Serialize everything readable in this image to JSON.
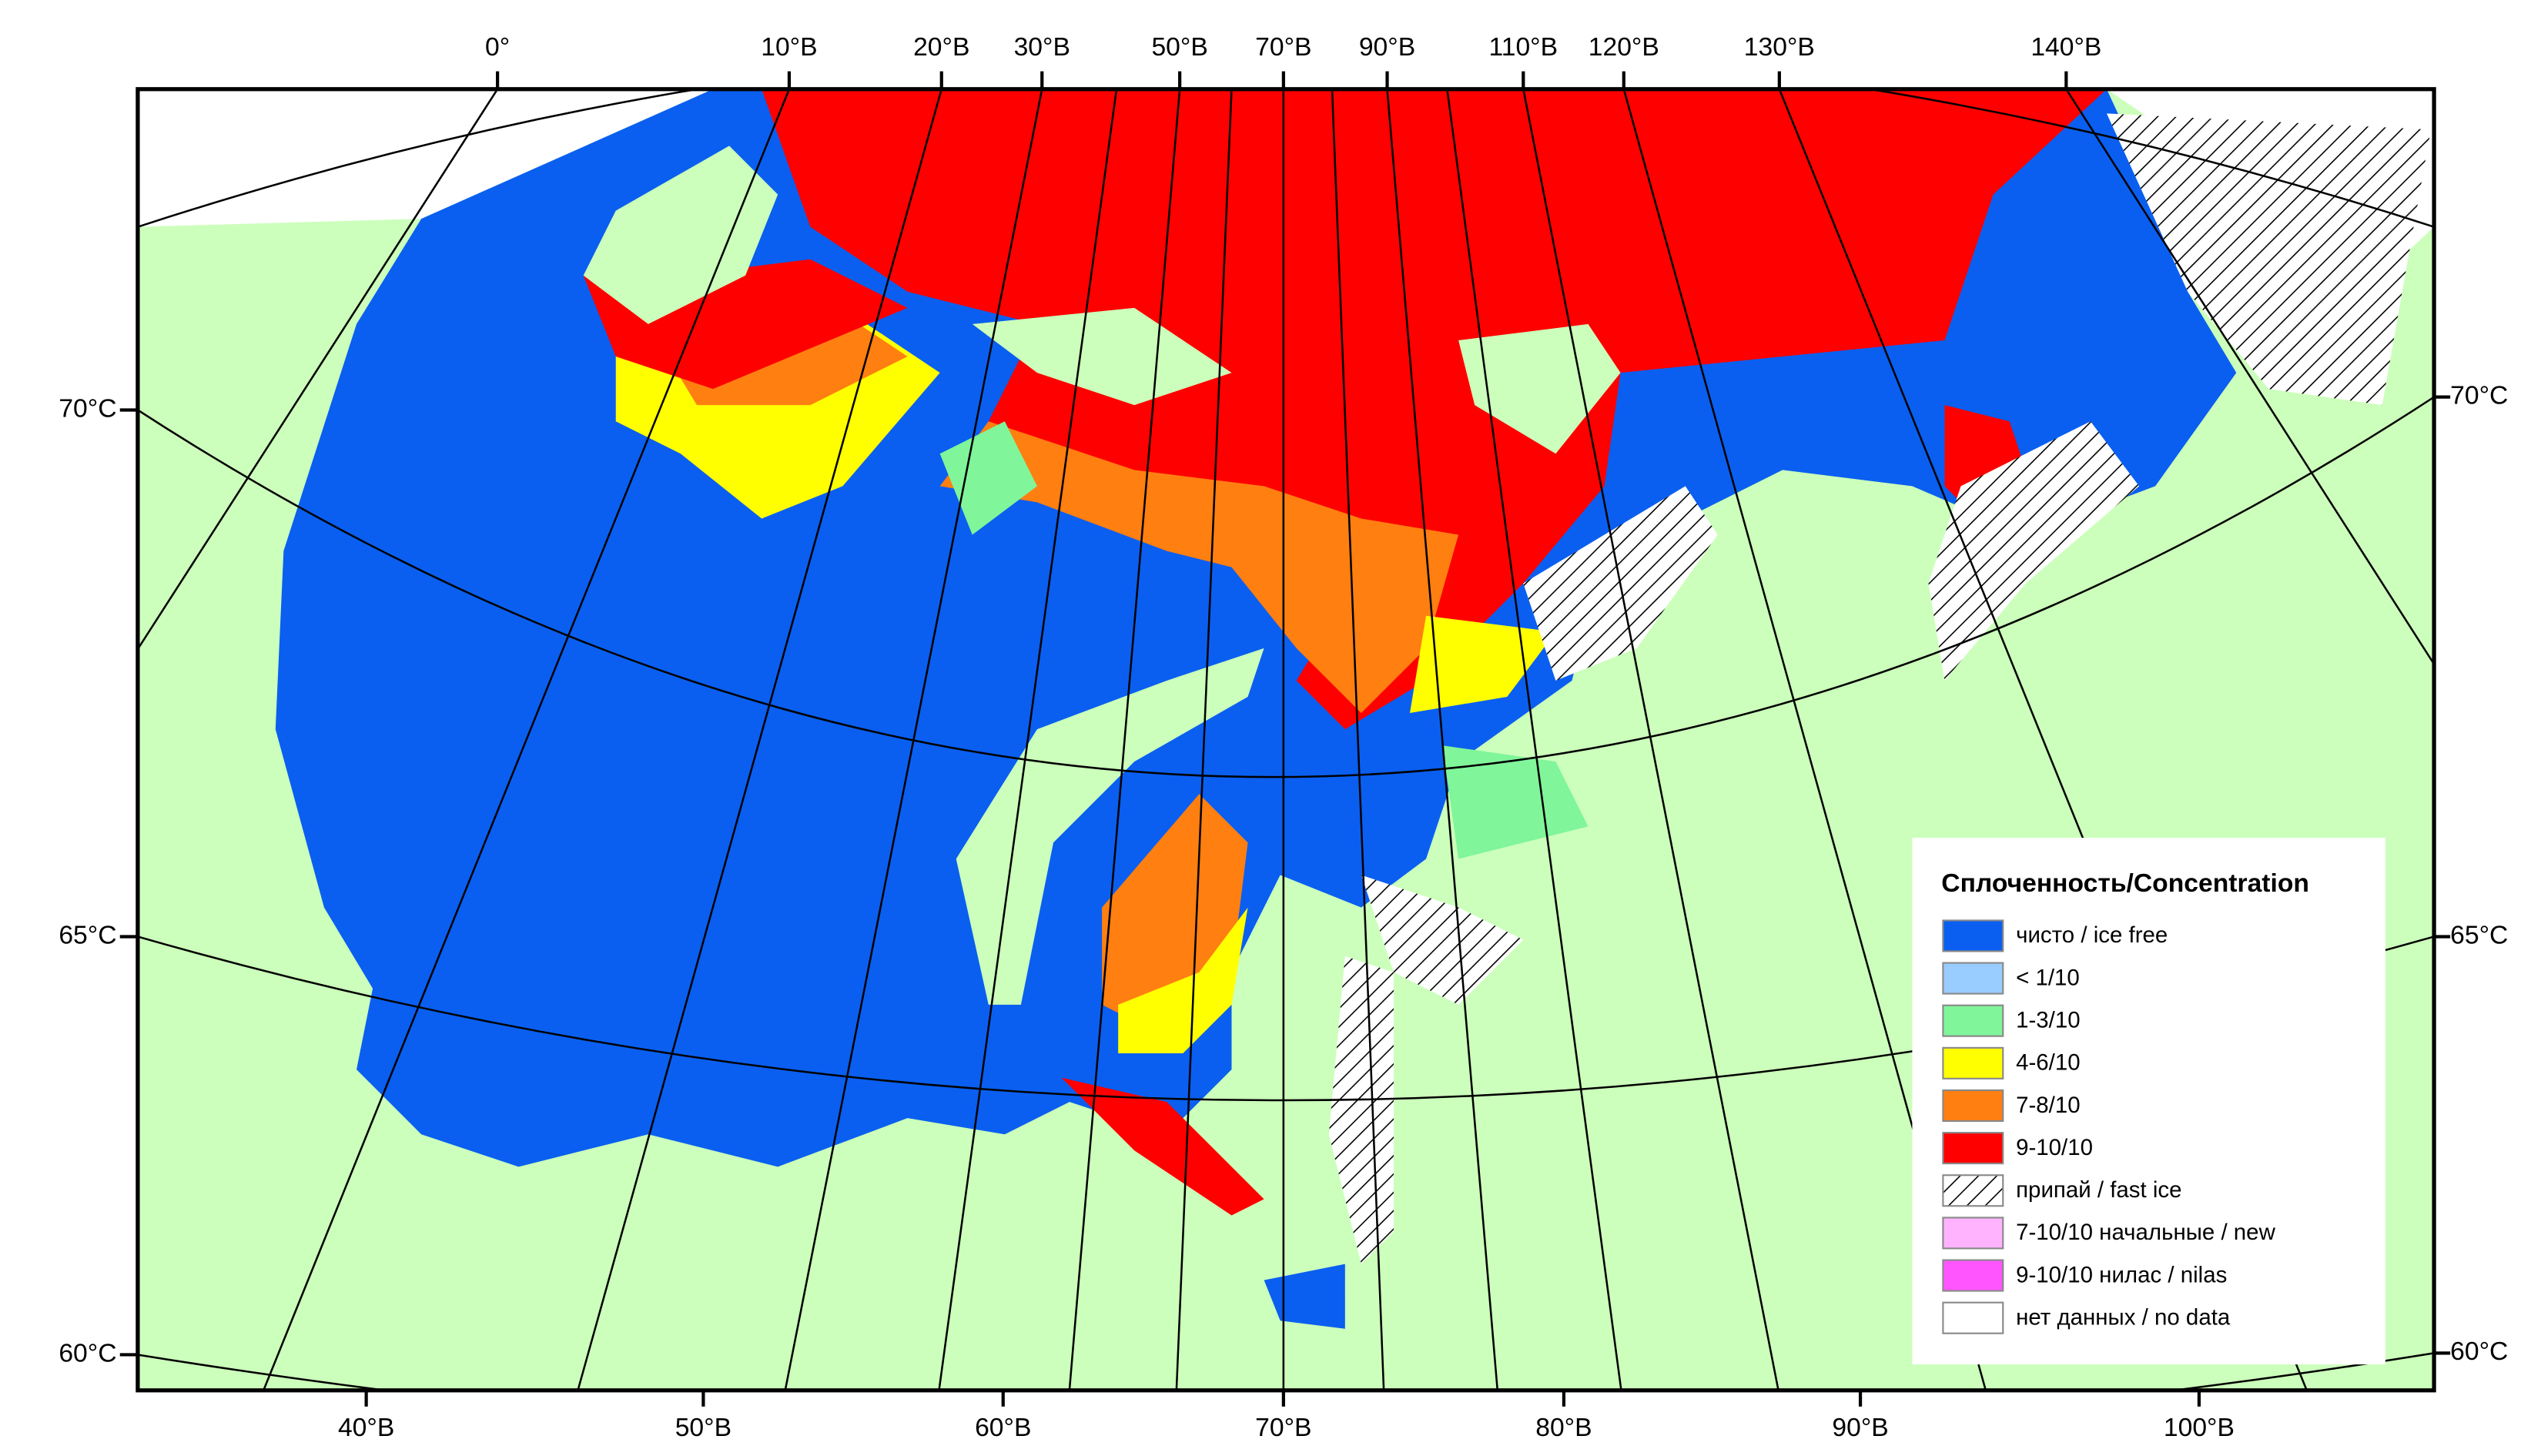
{
  "map": {
    "top_labels": [
      "0°",
      "10°В",
      "20°В",
      "30°В",
      "50°В",
      "70°В",
      "90°В",
      "110°В",
      "120°В",
      "130°В",
      "140°В"
    ],
    "bottom_labels": [
      "40°В",
      "50°В",
      "60°В",
      "70°В",
      "80°В",
      "90°В",
      "100°В"
    ],
    "left_labels": [
      "70°С",
      "65°С",
      "60°С"
    ],
    "right_labels": [
      "70°С",
      "65°С",
      "60°С"
    ]
  },
  "legend": {
    "title": "Сплоченность/Concentration",
    "items": [
      {
        "label": "чисто / ice free",
        "color": "#0a5ff0"
      },
      {
        "label": "< 1/10",
        "color": "#99ccff"
      },
      {
        "label": "1-3/10",
        "color": "#80f59a"
      },
      {
        "label": "4-6/10",
        "color": "#ffff00"
      },
      {
        "label": "7-8/10",
        "color": "#ff7f10"
      },
      {
        "label": "9-10/10",
        "color": "#ff0000"
      },
      {
        "label": "припай / fast ice",
        "pattern": "hatch"
      },
      {
        "label": "7-10/10 начальные / new",
        "color": "#ffb3ff"
      },
      {
        "label": "9-10/10 нилас / nilas",
        "color": "#ff55ff"
      },
      {
        "label": "нет данных / no data",
        "color": "#ffffff"
      }
    ]
  }
}
